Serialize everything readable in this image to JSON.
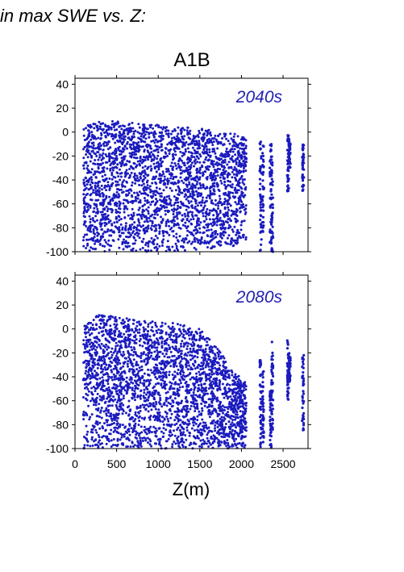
{
  "header": {
    "top_text": "in max SWE vs. Z:",
    "scenario_title": "A1B"
  },
  "chart_data": {
    "type": "scatter",
    "point_color": "#1b1bbf",
    "label_color": "#1f1fb4",
    "xlabel": "Z(m)",
    "xlim": [
      0,
      2800
    ],
    "ylim": [
      -100,
      45
    ],
    "x_ticks": [
      "0",
      "500",
      "1000",
      "1500",
      "2000",
      "2500"
    ],
    "x_tick_values": [
      0,
      500,
      1000,
      1500,
      2000,
      2500
    ],
    "y_ticks": [
      "40",
      "20",
      "0",
      "-20",
      "-40",
      "-60",
      "-80",
      "-100"
    ],
    "y_tick_values": [
      40,
      20,
      0,
      -20,
      -40,
      -60,
      -80,
      -100
    ],
    "panels": [
      {
        "label": "2040s",
        "dense_region": {
          "x": [
            100,
            2060
          ],
          "y": [
            -100,
            0
          ]
        },
        "dense_top": [
          [
            100,
            0
          ],
          [
            300,
            4
          ],
          [
            500,
            4
          ],
          [
            800,
            2
          ],
          [
            1200,
            0
          ],
          [
            1500,
            -2
          ],
          [
            1700,
            -4
          ],
          [
            1900,
            -6
          ],
          [
            2060,
            -10
          ]
        ],
        "dense_bottom": [
          [
            100,
            -100
          ],
          [
            1000,
            -100
          ],
          [
            1500,
            -100
          ],
          [
            1700,
            -97
          ],
          [
            1800,
            -94
          ],
          [
            1900,
            -96
          ],
          [
            2060,
            -90
          ]
        ],
        "sparse_columns": [
          {
            "x": 2230,
            "y": [
              -100,
              -8
            ]
          },
          {
            "x": 2260,
            "y": [
              -90,
              -10
            ]
          },
          {
            "x": 2350,
            "y": [
              -95,
              -10
            ]
          },
          {
            "x": 2370,
            "y": [
              -100,
              -20
            ]
          },
          {
            "x": 2560,
            "y": [
              -50,
              0
            ]
          },
          {
            "x": 2580,
            "y": [
              -30,
              -5
            ]
          },
          {
            "x": 2740,
            "y": [
              -50,
              -10
            ]
          }
        ]
      },
      {
        "label": "2080s",
        "dense_region": {
          "x": [
            100,
            2060
          ],
          "y": [
            -100,
            5
          ]
        },
        "dense_top": [
          [
            100,
            -5
          ],
          [
            150,
            3
          ],
          [
            300,
            7
          ],
          [
            500,
            5
          ],
          [
            800,
            2
          ],
          [
            1200,
            0
          ],
          [
            1500,
            -5
          ],
          [
            1700,
            -20
          ],
          [
            1900,
            -40
          ],
          [
            2060,
            -48
          ]
        ],
        "dense_bottom": [
          [
            100,
            -100
          ],
          [
            2060,
            -100
          ]
        ],
        "sparse_columns": [
          {
            "x": 2230,
            "y": [
              -100,
              -25
            ]
          },
          {
            "x": 2260,
            "y": [
              -95,
              -35
            ]
          },
          {
            "x": 2350,
            "y": [
              -100,
              -50
            ]
          },
          {
            "x": 2370,
            "y": [
              -90,
              -10
            ]
          },
          {
            "x": 2560,
            "y": [
              -60,
              -8
            ]
          },
          {
            "x": 2580,
            "y": [
              -45,
              -20
            ]
          },
          {
            "x": 2740,
            "y": [
              -85,
              -20
            ]
          }
        ]
      }
    ]
  }
}
